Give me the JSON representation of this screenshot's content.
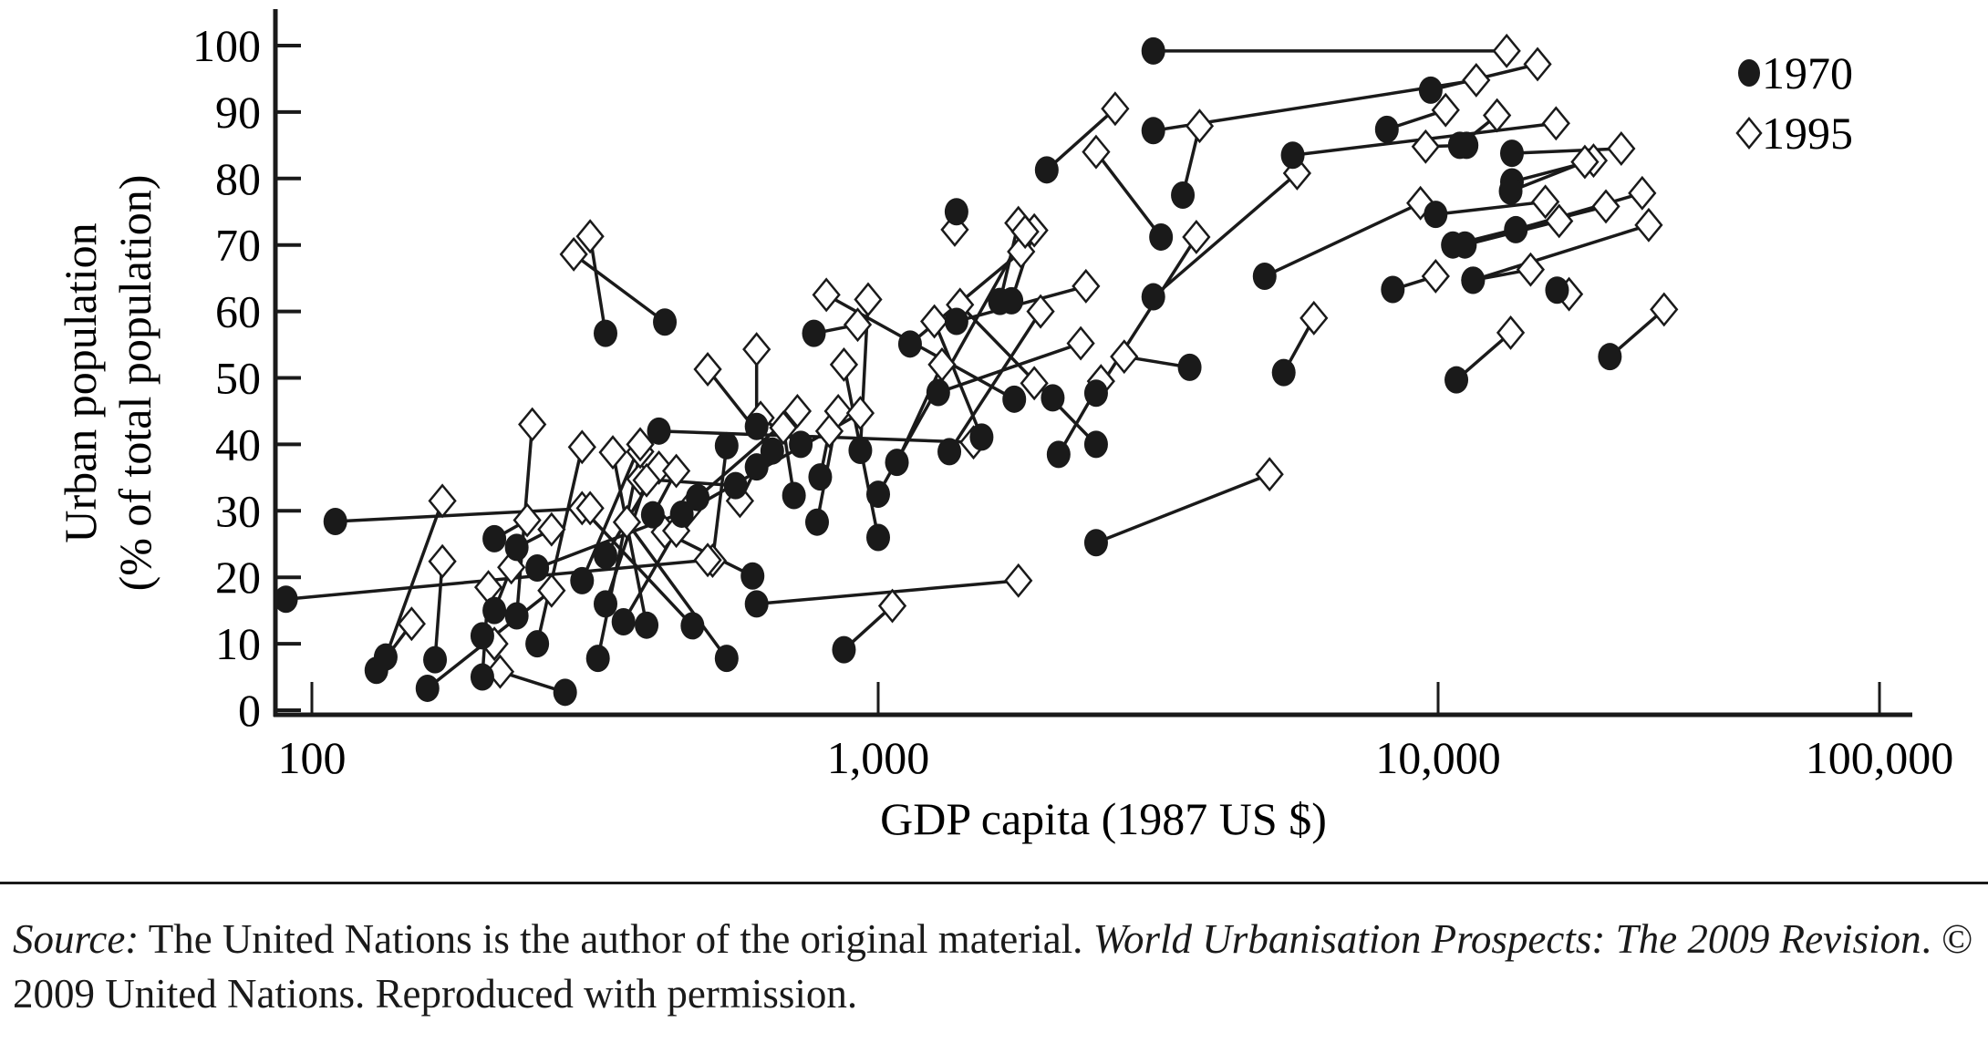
{
  "chart_data": {
    "type": "scatter",
    "title": "",
    "xlabel": "GDP capita (1987 US $)",
    "ylabel_lines": [
      "Urban population",
      "(% of total population)"
    ],
    "xscale": "log",
    "xlim": [
      100,
      100000
    ],
    "ylim": [
      0,
      100
    ],
    "x_ticks": [
      100,
      1000,
      10000,
      100000
    ],
    "x_tick_labels": [
      "100",
      "1,000",
      "10,000",
      "100,000"
    ],
    "y_ticks": [
      0,
      10,
      20,
      30,
      40,
      50,
      60,
      70,
      80,
      90,
      100
    ],
    "y_tick_labels": [
      "0",
      "10",
      "20",
      "30",
      "40",
      "50",
      "60",
      "70",
      "80",
      "90",
      "100"
    ],
    "grid": false,
    "legend_position": "top-right",
    "series": [
      {
        "name": "1970",
        "marker": "filled-circle"
      },
      {
        "name": "1995",
        "marker": "open-diamond"
      }
    ],
    "pair_fields": [
      "gdp_1970",
      "urban_1970",
      "gdp_1995",
      "urban_1995"
    ],
    "pairs": [
      [
        3100,
        99.2,
        14300,
        99.2
      ],
      [
        9700,
        93.3,
        16800,
        97.2
      ],
      [
        3100,
        87.2,
        12200,
        94.8
      ],
      [
        3500,
        77.5,
        3750,
        87.9
      ],
      [
        8100,
        87.4,
        10400,
        90.3
      ],
      [
        11200,
        85,
        13600,
        89.5
      ],
      [
        5500,
        83.5,
        18500,
        88.3
      ],
      [
        2000,
        81.3,
        2650,
        90.5
      ],
      [
        11600,
        85,
        9500,
        84.8
      ],
      [
        14700,
        83.8,
        26000,
        84.5
      ],
      [
        14700,
        79.5,
        22500,
        82.7
      ],
      [
        14600,
        78.1,
        21500,
        82.5
      ],
      [
        3200,
        71.2,
        2450,
        84
      ],
      [
        9900,
        74.6,
        17500,
        76.5
      ],
      [
        10800,
        70,
        24000,
        75.8
      ],
      [
        11500,
        70,
        18800,
        73.6
      ],
      [
        15000,
        72.3,
        29000,
        77.8
      ],
      [
        4900,
        65.3,
        9300,
        76.3
      ],
      [
        3100,
        62.2,
        5600,
        80.8
      ],
      [
        8300,
        63.3,
        9900,
        65.3
      ],
      [
        12000,
        64.7,
        16200,
        66.3
      ],
      [
        12000,
        64.7,
        30000,
        73
      ],
      [
        18600,
        63.2,
        19800,
        62.6
      ],
      [
        11000,
        49.7,
        14600,
        56.8
      ],
      [
        24500,
        53.2,
        32500,
        60.3
      ],
      [
        5300,
        50.8,
        6000,
        59
      ],
      [
        3600,
        51.6,
        2750,
        53.2
      ],
      [
        2450,
        25.2,
        5000,
        35.5
      ],
      [
        2450,
        47.7,
        3700,
        71.2
      ],
      [
        2450,
        40.0,
        1400,
        61
      ],
      [
        1380,
        75,
        1370,
        72.3
      ],
      [
        1650,
        61.5,
        1780,
        73.3
      ],
      [
        1730,
        61.6,
        1900,
        72.2
      ],
      [
        1380,
        58.5,
        2350,
        63.8
      ],
      [
        1140,
        55.1,
        1800,
        69
      ],
      [
        1280,
        47.8,
        2300,
        55.2
      ],
      [
        1530,
        41.1,
        1260,
        58.5
      ],
      [
        1750,
        46.8,
        810,
        62.5
      ],
      [
        1340,
        38.9,
        1950,
        60
      ],
      [
        2050,
        47,
        1900,
        49.2
      ],
      [
        2100,
        38.5,
        2500,
        49.5
      ],
      [
        1000,
        32.5,
        1830,
        72
      ],
      [
        1000,
        26,
        870,
        52
      ],
      [
        1080,
        37.3,
        1300,
        52
      ],
      [
        930,
        39.1,
        960,
        61.8
      ],
      [
        770,
        56.7,
        920,
        58
      ],
      [
        790,
        35.1,
        820,
        42
      ],
      [
        780,
        28.3,
        850,
        45
      ],
      [
        730,
        40,
        620,
        44
      ],
      [
        710,
        32.3,
        680,
        42.5
      ],
      [
        650,
        39,
        500,
        51.3
      ],
      [
        610,
        42.7,
        610,
        54.3
      ],
      [
        610,
        36.6,
        570,
        31.5
      ],
      [
        560,
        33.8,
        380,
        34.8
      ],
      [
        540,
        39.8,
        510,
        22.5
      ],
      [
        610,
        16,
        1780,
        19.5
      ],
      [
        600,
        20.2,
        420,
        26.8
      ],
      [
        870,
        9.1,
        1060,
        15.7
      ],
      [
        540,
        7.8,
        360,
        28.3
      ],
      [
        470,
        12.7,
        300,
        30.4
      ],
      [
        330,
        56.7,
        310,
        71.3
      ],
      [
        420,
        58.4,
        290,
        68.6
      ],
      [
        110,
        28.4,
        310,
        30.4
      ],
      [
        90,
        16.7,
        500,
        22.6
      ],
      [
        130,
        6,
        150,
        13
      ],
      [
        135,
        8,
        170,
        31.5
      ],
      [
        160,
        3.3,
        265,
        18
      ],
      [
        165,
        7.6,
        170,
        22.4
      ],
      [
        200,
        5,
        205,
        18.5
      ],
      [
        200,
        11.2,
        210,
        10
      ],
      [
        210,
        15,
        225,
        21.5
      ],
      [
        210,
        25.8,
        240,
        28.6
      ],
      [
        230,
        24.5,
        265,
        27.2
      ],
      [
        230,
        14.2,
        245,
        43
      ],
      [
        250,
        10,
        300,
        39.6
      ],
      [
        280,
        2.7,
        215,
        5.8
      ],
      [
        320,
        7.8,
        380,
        38.9
      ],
      [
        300,
        19.5,
        380,
        40
      ],
      [
        330,
        23.3,
        410,
        36.5
      ],
      [
        390,
        12.8,
        340,
        38.8
      ],
      [
        355,
        13.3,
        440,
        27
      ],
      [
        330,
        16,
        390,
        34.6
      ],
      [
        400,
        29.4,
        440,
        36
      ],
      [
        410,
        42,
        1480,
        40.3
      ],
      [
        250,
        21.4,
        460,
        30
      ],
      [
        450,
        29.5,
        930,
        44.7
      ],
      [
        480,
        32,
        720,
        45
      ]
    ]
  },
  "source": {
    "label": "Source:",
    "text1": " The United Nations is the author of the original material. ",
    "title": "World Urbanisation Prospects: The 2009 Revision",
    "text2": ". © 2009 United Nations. Reproduced with permission."
  },
  "colors": {
    "ink": "#1a1a1a",
    "background": "#ffffff"
  }
}
